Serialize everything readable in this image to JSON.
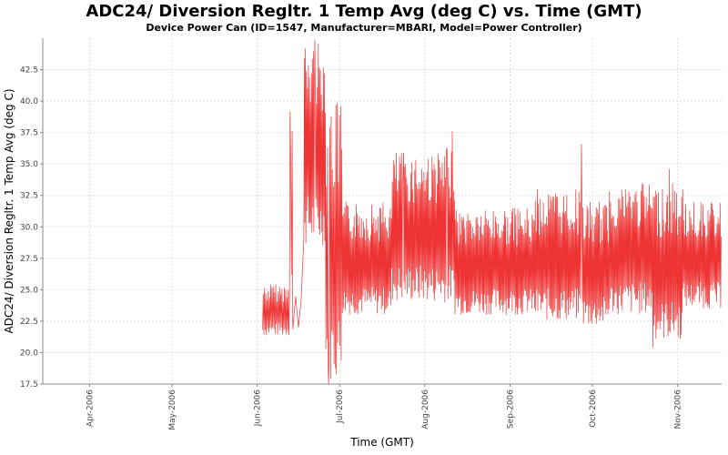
{
  "chart_data": {
    "type": "line",
    "title": "ADC24/ Diversion Regltr. 1 Temp Avg (deg C) vs. Time (GMT)",
    "subtitle": "Device Power Can (ID=1547, Manufacturer=MBARI, Model=Power Controller)",
    "xlabel": "Time (GMT)",
    "ylabel": "ADC24/ Diversion Regltr. 1 Temp Avg (deg C)",
    "xlim": [
      "2006-03-15",
      "2006-11-17"
    ],
    "ylim": [
      17.5,
      45.0
    ],
    "x_ticks": [
      {
        "date": "2006-04-01",
        "label": "Apr-2006"
      },
      {
        "date": "2006-05-01",
        "label": "May-2006"
      },
      {
        "date": "2006-06-01",
        "label": "Jun-2006"
      },
      {
        "date": "2006-07-01",
        "label": "Jul-2006"
      },
      {
        "date": "2006-08-01",
        "label": "Aug-2006"
      },
      {
        "date": "2006-09-01",
        "label": "Sep-2006"
      },
      {
        "date": "2006-10-01",
        "label": "Oct-2006"
      },
      {
        "date": "2006-11-01",
        "label": "Nov-2006"
      }
    ],
    "y_ticks": [
      "17.5",
      "20.0",
      "22.5",
      "25.0",
      "27.5",
      "30.0",
      "32.5",
      "35.0",
      "37.5",
      "40.0",
      "42.5"
    ],
    "grid": true,
    "legend": "none",
    "series": [
      {
        "color": "#ee3333",
        "segments": [
          {
            "start": "2006-06-03",
            "end": "2006-06-13",
            "low": 21.3,
            "high": 25.5,
            "cycles": 22
          },
          {
            "start": "2006-06-13",
            "end": "2006-06-14",
            "low": 24.5,
            "high": 38.8,
            "cycles": 2
          },
          {
            "start": "2006-06-14",
            "end": "2006-06-18",
            "low": 21.3,
            "high": 25.0,
            "cycles": 2
          },
          {
            "start": "2006-06-18",
            "end": "2006-06-26",
            "low": 28.5,
            "high": 44.7,
            "cycles": 22
          },
          {
            "start": "2006-06-26",
            "end": "2006-07-02",
            "low": 17.8,
            "high": 40.0,
            "cycles": 14
          },
          {
            "start": "2006-07-02",
            "end": "2006-07-20",
            "low": 23.0,
            "high": 32.0,
            "cycles": 48
          },
          {
            "start": "2006-07-20",
            "end": "2006-08-12",
            "low": 24.0,
            "high": 36.0,
            "cycles": 62
          },
          {
            "start": "2006-08-12",
            "end": "2006-09-10",
            "low": 23.0,
            "high": 31.5,
            "cycles": 78
          },
          {
            "start": "2006-09-10",
            "end": "2006-09-27",
            "low": 22.5,
            "high": 33.0,
            "cycles": 46
          },
          {
            "start": "2006-09-27",
            "end": "2006-10-07",
            "low": 22.0,
            "high": 32.0,
            "cycles": 27
          },
          {
            "start": "2006-10-07",
            "end": "2006-10-23",
            "low": 23.0,
            "high": 33.5,
            "cycles": 43
          },
          {
            "start": "2006-10-23",
            "end": "2006-11-03",
            "low": 21.0,
            "high": 33.5,
            "cycles": 30
          },
          {
            "start": "2006-11-03",
            "end": "2006-11-17",
            "low": 23.5,
            "high": 32.0,
            "cycles": 38
          }
        ],
        "peaks": [
          {
            "date": "2006-06-13",
            "value": 39.2
          },
          {
            "date": "2006-06-22",
            "value": 44.9
          },
          {
            "date": "2006-06-27",
            "value": 17.5
          },
          {
            "date": "2006-07-24",
            "value": 33.5
          },
          {
            "date": "2006-08-09",
            "value": 36.3
          },
          {
            "date": "2006-08-11",
            "value": 37.6
          },
          {
            "date": "2006-09-27",
            "value": 36.6
          },
          {
            "date": "2006-10-23",
            "value": 20.4
          },
          {
            "date": "2006-10-29",
            "value": 34.6
          }
        ]
      }
    ]
  }
}
